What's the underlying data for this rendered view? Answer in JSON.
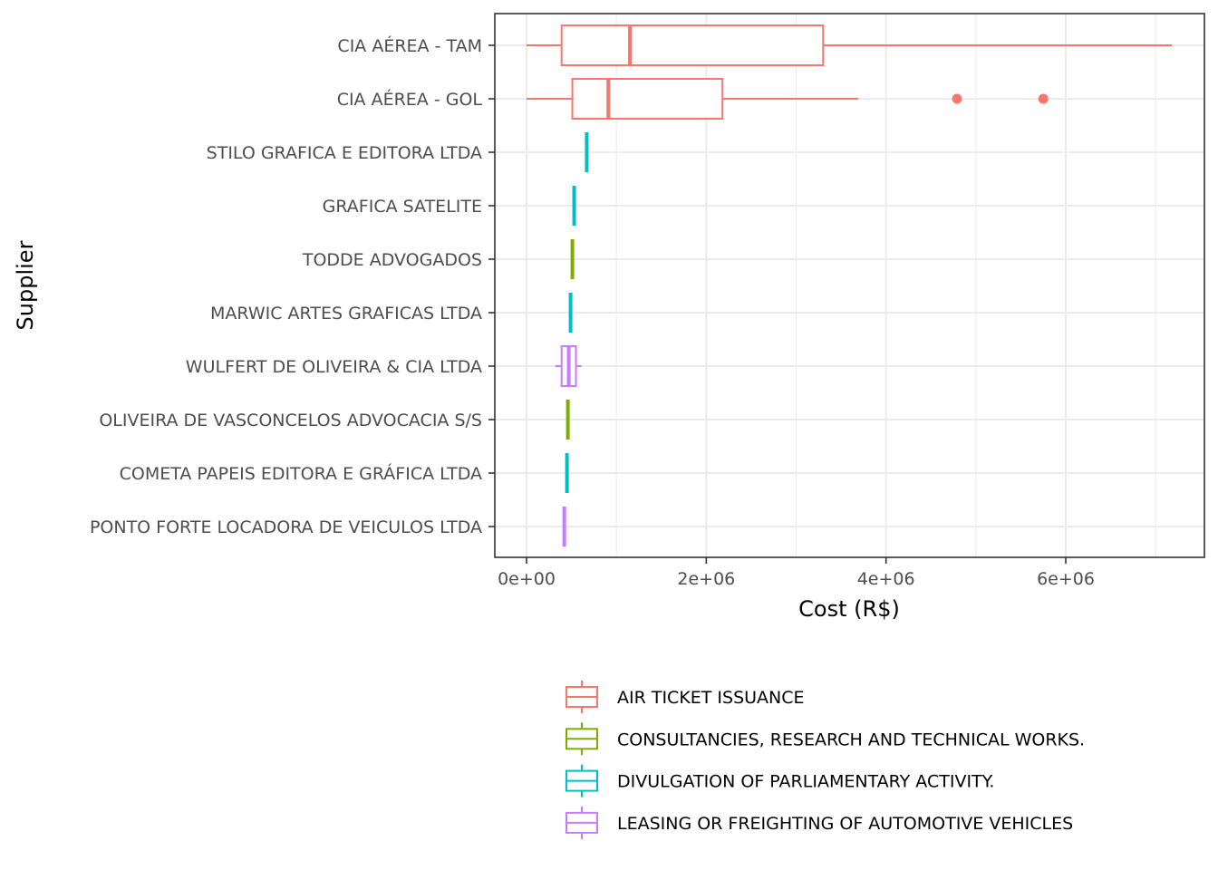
{
  "chart_data": {
    "type": "boxplot",
    "orientation": "horizontal",
    "title": "",
    "xlabel": "Cost (R$)",
    "ylabel": "Supplier",
    "xlim": [
      -300000,
      7600000
    ],
    "x_ticks": [
      {
        "value": 0,
        "label": "0e+00"
      },
      {
        "value": 2000000,
        "label": "2e+06"
      },
      {
        "value": 4000000,
        "label": "4e+06"
      },
      {
        "value": 6000000,
        "label": "6e+06"
      }
    ],
    "grid": true,
    "legend_position": "bottom",
    "categories": [
      "CIA AÉREA - TAM",
      "CIA AÉREA - GOL",
      "STILO GRAFICA E EDITORA LTDA",
      "GRAFICA SATELITE",
      "TODDE ADVOGADOS",
      "MARWIC ARTES GRAFICAS LTDA",
      "WULFERT DE OLIVEIRA & CIA LTDA",
      "OLIVEIRA DE VASCONCELOS ADVOCACIA S/S",
      "COMETA PAPEIS EDITORA E GRÁFICA LTDA",
      "PONTO FORTE LOCADORA DE VEICULOS LTDA"
    ],
    "series": [
      {
        "name": "AIR TICKET ISSUANCE",
        "color": "#F8766D"
      },
      {
        "name": "CONSULTANCIES, RESEARCH AND TECHNICAL WORKS.",
        "color": "#7CAE00"
      },
      {
        "name": "DIVULGATION OF PARLIAMENTARY ACTIVITY.",
        "color": "#00BFC4"
      },
      {
        "name": "LEASING OR FREIGHTING OF AUTOMOTIVE VEHICLES",
        "color": "#C77CFF"
      }
    ],
    "boxes": [
      {
        "supplier": "CIA AÉREA - TAM",
        "series": 0,
        "min": 0,
        "q1": 390000,
        "median": 1150000,
        "q3": 3300000,
        "max": 7180000,
        "outliers": []
      },
      {
        "supplier": "CIA AÉREA - GOL",
        "series": 0,
        "min": 0,
        "q1": 510000,
        "median": 910000,
        "q3": 2180000,
        "max": 3690000,
        "outliers": [
          4790000,
          5750000
        ]
      },
      {
        "supplier": "STILO GRAFICA E EDITORA LTDA",
        "series": 2,
        "min": 670000,
        "q1": 670000,
        "median": 670000,
        "q3": 670000,
        "max": 670000,
        "outliers": []
      },
      {
        "supplier": "GRAFICA SATELITE",
        "series": 2,
        "min": 530000,
        "q1": 530000,
        "median": 530000,
        "q3": 530000,
        "max": 530000,
        "outliers": []
      },
      {
        "supplier": "TODDE ADVOGADOS",
        "series": 1,
        "min": 510000,
        "q1": 510000,
        "median": 510000,
        "q3": 510000,
        "max": 510000,
        "outliers": []
      },
      {
        "supplier": "MARWIC ARTES GRAFICAS LTDA",
        "series": 2,
        "min": 490000,
        "q1": 490000,
        "median": 490000,
        "q3": 490000,
        "max": 490000,
        "outliers": []
      },
      {
        "supplier": "WULFERT DE OLIVEIRA & CIA LTDA",
        "series": 3,
        "min": 320000,
        "q1": 390000,
        "median": 470000,
        "q3": 550000,
        "max": 610000,
        "outliers": []
      },
      {
        "supplier": "OLIVEIRA DE VASCONCELOS ADVOCACIA S/S",
        "series": 1,
        "min": 460000,
        "q1": 460000,
        "median": 460000,
        "q3": 460000,
        "max": 460000,
        "outliers": []
      },
      {
        "supplier": "COMETA PAPEIS EDITORA E GRÁFICA LTDA",
        "series": 2,
        "min": 450000,
        "q1": 450000,
        "median": 450000,
        "q3": 450000,
        "max": 450000,
        "outliers": []
      },
      {
        "supplier": "PONTO FORTE LOCADORA DE VEICULOS LTDA",
        "series": 3,
        "min": 420000,
        "q1": 420000,
        "median": 420000,
        "q3": 420000,
        "max": 420000,
        "outliers": []
      }
    ]
  }
}
